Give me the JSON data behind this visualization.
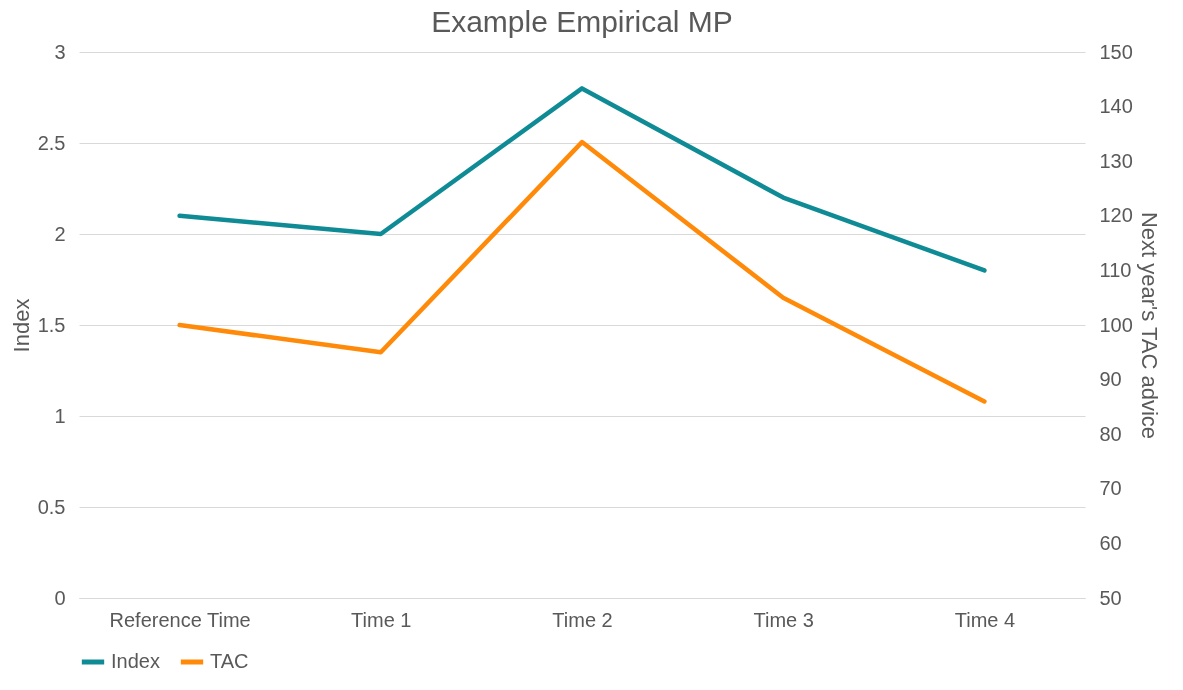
{
  "chart_data": {
    "type": "line",
    "title": "Example Empirical MP",
    "ylabel": "Index",
    "y2label": "Next year's TAC advice",
    "categories": [
      "Reference  Time",
      "Time 1",
      "Time 2",
      "Time 3",
      "Time 4"
    ],
    "series": [
      {
        "name": "Index",
        "color": "#0f8b96",
        "values": [
          2.1,
          2.0,
          2.8,
          2.2,
          1.8
        ]
      },
      {
        "name": "TAC",
        "color": "#ff8a0a",
        "values": [
          100,
          95,
          133.5,
          105,
          86
        ],
        "axis": "y2"
      }
    ],
    "ylim": [
      0,
      3
    ],
    "yticks": [
      0,
      0.5,
      1,
      1.5,
      2,
      2.5,
      3
    ],
    "y2lim": [
      50,
      150
    ],
    "y2ticks": [
      50,
      60,
      70,
      80,
      90,
      100,
      110,
      120,
      130,
      140,
      150
    ],
    "grid": "y",
    "legend": "bottom",
    "marker": "none",
    "line_style": "solid"
  }
}
